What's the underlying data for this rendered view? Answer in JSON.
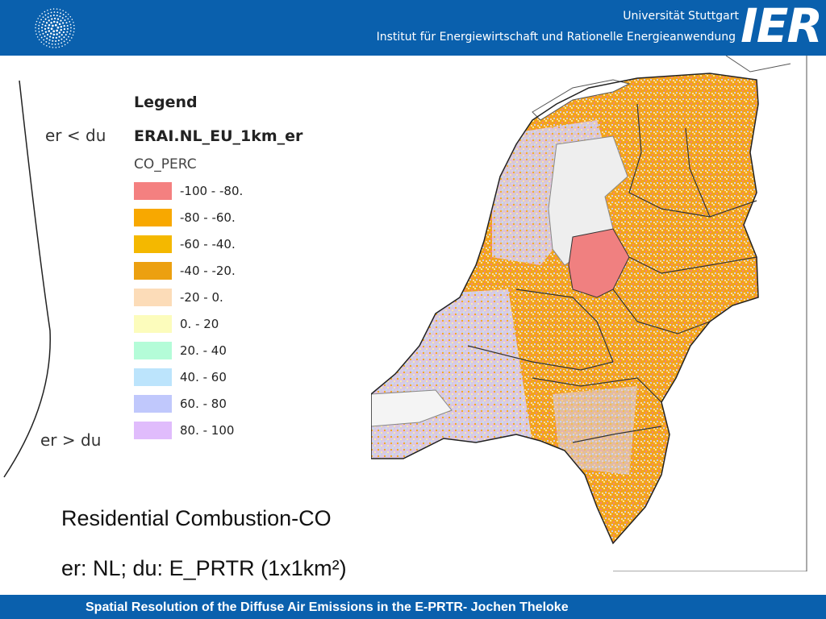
{
  "header": {
    "university": "Universität Stuttgart",
    "institute": "Institut für Energiewirtschaft und Rationelle Energieanwendung",
    "logo_text": "IER",
    "background_color": "#0a60ad"
  },
  "side_labels": {
    "top": "er < du",
    "bottom": "er > du"
  },
  "legend": {
    "title": "Legend",
    "layer": "ERAI.NL_EU_1km_er",
    "field": "CO_PERC",
    "items": [
      {
        "label": "-100 -  -80.",
        "color": "#f48080"
      },
      {
        "label": "-80 -  -60.",
        "color": "#f8a800"
      },
      {
        "label": "-60 -  -40.",
        "color": "#f4b800"
      },
      {
        "label": "-40 - -20.",
        "color": "#eca010"
      },
      {
        "label": "-20 - 0.",
        "color": "#fcdcb8"
      },
      {
        "label": "0. - 20",
        "color": "#fcfcbc"
      },
      {
        "label": "20. - 40",
        "color": "#b4fcd8"
      },
      {
        "label": "40. - 60",
        "color": "#bce4fc"
      },
      {
        "label": "60. - 80",
        "color": "#c0c8fc"
      },
      {
        "label": "80. - 100",
        "color": "#e0bcfc"
      }
    ]
  },
  "caption": {
    "line1": "Residential Combustion-CO",
    "line2": "er: NL; du: E_PRTR (1x1km²)"
  },
  "footer": {
    "text": "Spatial Resolution of the Diffuse Air Emissions in the E-PRTR- Jochen Theloke"
  }
}
